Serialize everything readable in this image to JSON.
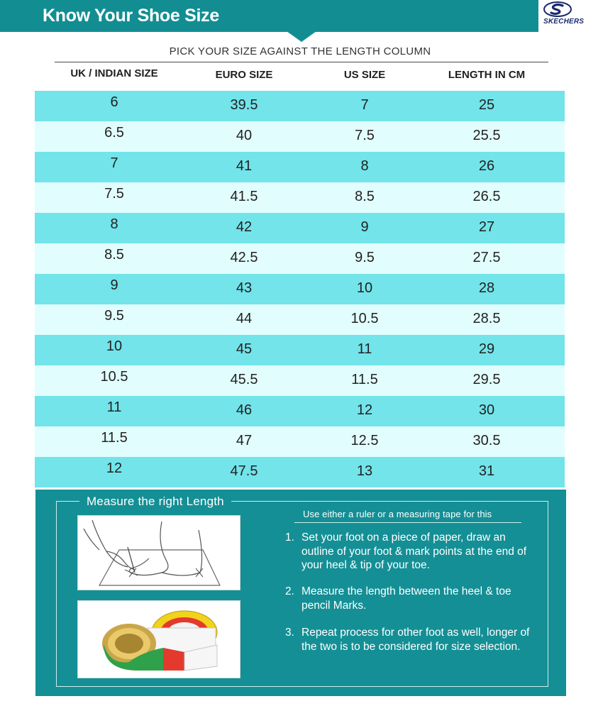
{
  "header": {
    "title": "Know Your Shoe Size",
    "brand": "SKECHERS",
    "brand_color": "#1a2a6c",
    "bar_color": "#128e93"
  },
  "subtitle": "PICK YOUR SIZE AGAINST THE LENGTH COLUMN",
  "table": {
    "columns": [
      "UK / INDIAN SIZE",
      "EURO SIZE",
      "US SIZE",
      "LENGTH IN CM"
    ],
    "row_colors": [
      "#72e4ea",
      "#e2fdfd"
    ],
    "rows": [
      [
        "6",
        "39.5",
        "7",
        "25"
      ],
      [
        "6.5",
        "40",
        "7.5",
        "25.5"
      ],
      [
        "7",
        "41",
        "8",
        "26"
      ],
      [
        "7.5",
        "41.5",
        "8.5",
        "26.5"
      ],
      [
        "8",
        "42",
        "9",
        "27"
      ],
      [
        "8.5",
        "42.5",
        "9.5",
        "27.5"
      ],
      [
        "9",
        "43",
        "10",
        "28"
      ],
      [
        "9.5",
        "44",
        "10.5",
        "28.5"
      ],
      [
        "10",
        "45",
        "11",
        "29"
      ],
      [
        "10.5",
        "45.5",
        "11.5",
        "29.5"
      ],
      [
        "11",
        "46",
        "12",
        "30"
      ],
      [
        "11.5",
        "47",
        "12.5",
        "30.5"
      ],
      [
        "12",
        "47.5",
        "13",
        "31"
      ]
    ]
  },
  "measure": {
    "title": "Measure the right Length",
    "intro": "Use either a ruler or a measuring tape for this",
    "steps": [
      {
        "num": "1.",
        "text": "Set your foot on a piece of paper, draw an outline of your foot & mark points at the end of your heel & tip of your toe."
      },
      {
        "num": "2.",
        "text": "Measure the length between the heel & toe pencil Marks."
      },
      {
        "num": "3.",
        "text": "Repeat process for other foot as well, longer of the two is to be considered for size selection."
      }
    ],
    "images": [
      "foot-outline-drawing",
      "measuring-tape-icon"
    ],
    "panel_color": "#148f95"
  }
}
